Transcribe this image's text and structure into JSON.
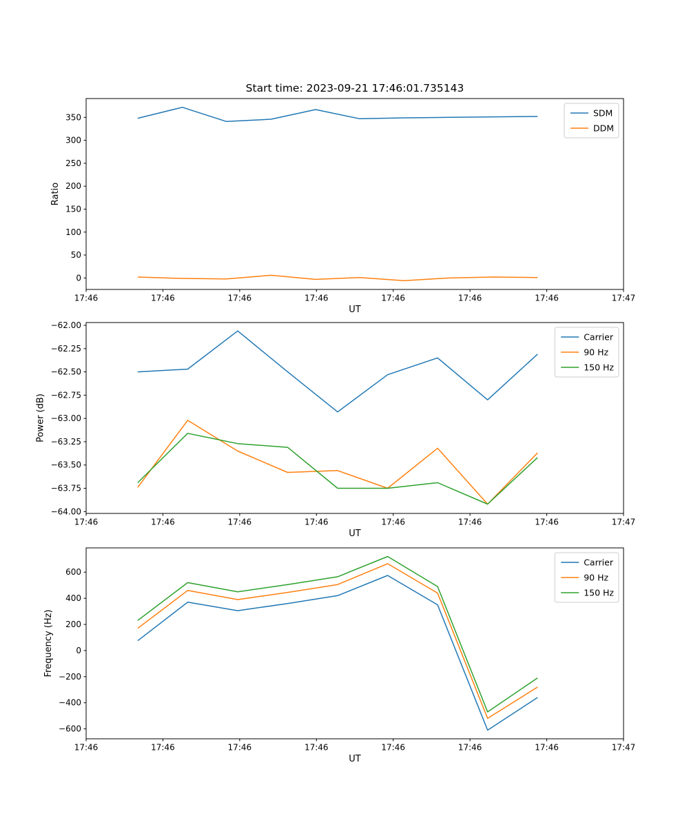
{
  "figure": {
    "title": "Start time: 2023-09-21 17:46:01.735143",
    "background": "#ffffff",
    "palette": {
      "blue": "#1f77b4",
      "orange": "#ff7f0e",
      "green": "#2ca02c"
    }
  },
  "chart_data": [
    {
      "type": "line",
      "name": "ratio-plot",
      "title": "",
      "xlabel": "UT",
      "ylabel": "Ratio",
      "grid": false,
      "xlim": [
        0,
        1
      ],
      "ylim": [
        -25,
        391
      ],
      "xtick_labels": [
        "17:46",
        "17:46",
        "17:46",
        "17:46",
        "17:46",
        "17:46",
        "17:46",
        "17:47"
      ],
      "yticks": [
        0,
        50,
        100,
        150,
        200,
        250,
        300,
        350
      ],
      "ytick_labels": [
        "0",
        "50",
        "100",
        "150",
        "200",
        "250",
        "300",
        "350"
      ],
      "x": [
        0.096,
        0.179,
        0.261,
        0.344,
        0.427,
        0.509,
        0.592,
        0.674,
        0.757,
        0.84
      ],
      "series": [
        {
          "name": "SDM",
          "color": "#1f77b4",
          "values": [
            348,
            372,
            341,
            346,
            367,
            347,
            349,
            350,
            351,
            352
          ]
        },
        {
          "name": "DDM",
          "color": "#ff7f0e",
          "values": [
            2,
            -1,
            -2,
            6,
            -3,
            1,
            -6,
            0,
            2,
            1
          ]
        }
      ],
      "legend": {
        "position": "upper right",
        "labels": [
          "SDM",
          "DDM"
        ]
      }
    },
    {
      "type": "line",
      "name": "power-plot",
      "title": "",
      "xlabel": "UT",
      "ylabel": "Power (dB)",
      "grid": false,
      "xlim": [
        0,
        1
      ],
      "ylim": [
        -64.02,
        -61.97
      ],
      "xtick_labels": [
        "17:46",
        "17:46",
        "17:46",
        "17:46",
        "17:46",
        "17:46",
        "17:46",
        "17:47"
      ],
      "yticks": [
        -64.0,
        -63.75,
        -63.5,
        -63.25,
        -63.0,
        -62.75,
        -62.5,
        -62.25,
        -62.0
      ],
      "ytick_labels": [
        "−64.00",
        "−63.75",
        "−63.50",
        "−63.25",
        "−63.00",
        "−62.75",
        "−62.50",
        "−62.25",
        "−62.00"
      ],
      "x": [
        0.096,
        0.189,
        0.282,
        0.375,
        0.468,
        0.561,
        0.654,
        0.747,
        0.84
      ],
      "series": [
        {
          "name": "Carrier",
          "color": "#1f77b4",
          "values": [
            -62.5,
            -62.47,
            -62.06,
            -62.5,
            -62.93,
            -62.53,
            -62.35,
            -62.8,
            -62.31
          ]
        },
        {
          "name": "90 Hz",
          "color": "#ff7f0e",
          "values": [
            -63.74,
            -63.02,
            -63.35,
            -63.58,
            -63.56,
            -63.75,
            -63.32,
            -63.92,
            -63.37
          ]
        },
        {
          "name": "150 Hz",
          "color": "#2ca02c",
          "values": [
            -63.69,
            -63.16,
            -63.27,
            -63.31,
            -63.75,
            -63.75,
            -63.69,
            -63.92,
            -63.42
          ]
        }
      ],
      "legend": {
        "position": "upper right",
        "labels": [
          "Carrier",
          "90 Hz",
          "150 Hz"
        ]
      }
    },
    {
      "type": "line",
      "name": "frequency-plot",
      "title": "",
      "xlabel": "UT",
      "ylabel": "Frequency (Hz)",
      "grid": false,
      "xlim": [
        0,
        1
      ],
      "ylim": [
        -676,
        786
      ],
      "xtick_labels": [
        "17:46",
        "17:46",
        "17:46",
        "17:46",
        "17:46",
        "17:46",
        "17:46",
        "17:47"
      ],
      "yticks": [
        -600,
        -400,
        -200,
        0,
        200,
        400,
        600
      ],
      "ytick_labels": [
        "−600",
        "−400",
        "−200",
        "0",
        "200",
        "400",
        "600"
      ],
      "x": [
        0.096,
        0.189,
        0.282,
        0.375,
        0.468,
        0.561,
        0.654,
        0.747,
        0.84
      ],
      "series": [
        {
          "name": "Carrier",
          "color": "#1f77b4",
          "values": [
            75,
            370,
            305,
            360,
            420,
            575,
            350,
            -610,
            -360
          ]
        },
        {
          "name": "90 Hz",
          "color": "#ff7f0e",
          "values": [
            170,
            460,
            390,
            445,
            505,
            665,
            440,
            -520,
            -280
          ]
        },
        {
          "name": "150 Hz",
          "color": "#2ca02c",
          "values": [
            230,
            520,
            450,
            505,
            565,
            720,
            490,
            -470,
            -210
          ]
        }
      ],
      "legend": {
        "position": "upper right",
        "labels": [
          "Carrier",
          "90 Hz",
          "150 Hz"
        ]
      }
    }
  ]
}
